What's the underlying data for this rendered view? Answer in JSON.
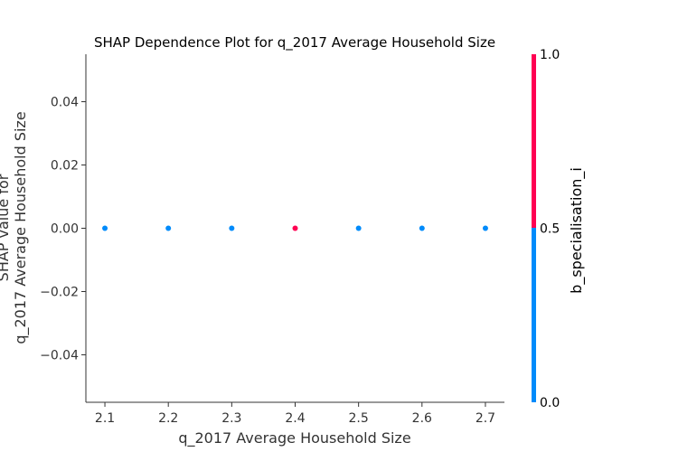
{
  "chart_data": {
    "type": "scatter",
    "title": "SHAP Dependence Plot for q_2017 Average Household Size",
    "xlabel": "q_2017 Average Household Size",
    "ylabel_lines": [
      "SHAP value for",
      "q_2017 Average Household Size"
    ],
    "xlim": [
      2.07,
      2.73
    ],
    "ylim": [
      -0.055,
      0.055
    ],
    "xticks": [
      2.1,
      2.2,
      2.3,
      2.4,
      2.5,
      2.6,
      2.7
    ],
    "xtick_labels": [
      "2.1",
      "2.2",
      "2.3",
      "2.4",
      "2.5",
      "2.6",
      "2.7"
    ],
    "yticks": [
      0.04,
      0.02,
      0.0,
      -0.02,
      -0.04
    ],
    "ytick_labels": [
      "0.04",
      "0.02",
      "0.00",
      "−0.02",
      "−0.04"
    ],
    "points": [
      {
        "x": 2.1,
        "y": 0.0,
        "c": 0
      },
      {
        "x": 2.2,
        "y": 0.0,
        "c": 0
      },
      {
        "x": 2.3,
        "y": 0.0,
        "c": 0
      },
      {
        "x": 2.4,
        "y": 0.0,
        "c": 1
      },
      {
        "x": 2.5,
        "y": 0.0,
        "c": 0
      },
      {
        "x": 2.6,
        "y": 0.0,
        "c": 0
      },
      {
        "x": 2.7,
        "y": 0.0,
        "c": 0
      }
    ],
    "colorbar": {
      "label": "b_specialisation_i",
      "ticks": [
        1.0,
        0.5,
        0.0
      ],
      "tick_labels": [
        "1.0",
        "0.5",
        "0.0"
      ],
      "low_color": "#008bfb",
      "high_color": "#ff0052"
    },
    "grid": false
  }
}
